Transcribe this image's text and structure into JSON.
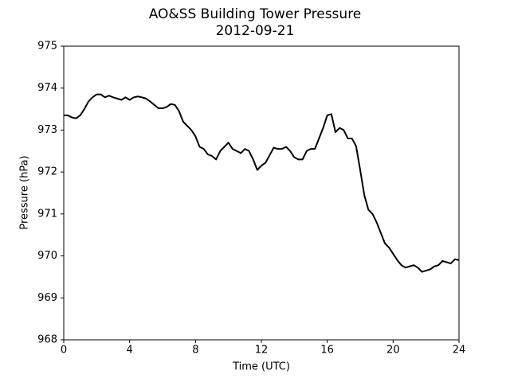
{
  "chart_data": {
    "type": "line",
    "title": "AO&SS Building Tower Pressure",
    "subtitle": "2012-09-21",
    "x_label": "Time (UTC)",
    "y_label": "Pressure (hPa)",
    "xlim": [
      0,
      24
    ],
    "xticks": [
      0,
      4,
      8,
      12,
      16,
      20,
      24
    ],
    "ylim": [
      968,
      975
    ],
    "yticks": [
      968,
      969,
      970,
      971,
      972,
      973,
      974,
      975
    ],
    "grid": false,
    "x": [
      0,
      0.25,
      0.5,
      0.75,
      1,
      1.25,
      1.5,
      1.75,
      2,
      2.25,
      2.5,
      2.75,
      3,
      3.25,
      3.5,
      3.75,
      4,
      4.25,
      4.5,
      4.75,
      5,
      5.25,
      5.5,
      5.75,
      6,
      6.25,
      6.5,
      6.75,
      7,
      7.25,
      7.5,
      7.75,
      8,
      8.25,
      8.5,
      8.75,
      9,
      9.25,
      9.5,
      9.75,
      10,
      10.25,
      10.5,
      10.75,
      11,
      11.25,
      11.5,
      11.75,
      12,
      12.25,
      12.5,
      12.75,
      13,
      13.25,
      13.5,
      13.75,
      14,
      14.25,
      14.5,
      14.75,
      15,
      15.25,
      15.5,
      15.75,
      16,
      16.25,
      16.5,
      16.75,
      17,
      17.25,
      17.5,
      17.75,
      18,
      18.25,
      18.5,
      18.75,
      19,
      19.25,
      19.5,
      19.75,
      20,
      20.25,
      20.5,
      20.75,
      21,
      21.25,
      21.5,
      21.75,
      22,
      22.25,
      22.5,
      22.75,
      23,
      23.25,
      23.5,
      23.75,
      24
    ],
    "series": [
      {
        "color": "#000000",
        "values": [
          973.35,
          973.35,
          973.3,
          973.28,
          973.35,
          973.5,
          973.68,
          973.78,
          973.85,
          973.85,
          973.78,
          973.82,
          973.78,
          973.75,
          973.72,
          973.78,
          973.72,
          973.78,
          973.8,
          973.78,
          973.75,
          973.68,
          973.6,
          973.52,
          973.52,
          973.55,
          973.62,
          973.6,
          973.45,
          973.2,
          973.1,
          973.0,
          972.85,
          972.6,
          972.55,
          972.42,
          972.38,
          972.3,
          972.5,
          972.6,
          972.7,
          972.55,
          972.5,
          972.45,
          972.55,
          972.5,
          972.3,
          972.05,
          972.15,
          972.22,
          972.4,
          972.58,
          972.55,
          972.55,
          972.6,
          972.5,
          972.35,
          972.3,
          972.3,
          972.5,
          972.55,
          972.55,
          972.8,
          973.05,
          973.35,
          973.38,
          972.95,
          973.05,
          973.0,
          972.8,
          972.8,
          972.62,
          972.05,
          971.45,
          971.1,
          971.0,
          970.8,
          970.55,
          970.3,
          970.2,
          970.05,
          969.9,
          969.78,
          969.72,
          969.75,
          969.78,
          969.72,
          969.62,
          969.65,
          969.68,
          969.75,
          969.78,
          969.88,
          969.85,
          969.82,
          969.92,
          969.9
        ]
      }
    ]
  }
}
